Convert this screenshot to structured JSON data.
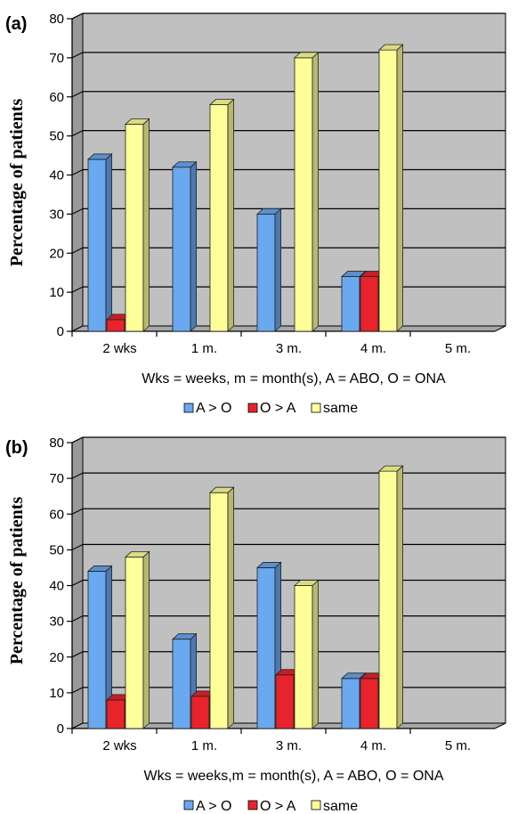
{
  "colors": {
    "A_gt_O": "#6aa8f0",
    "O_gt_A": "#e8232b",
    "same": "#ffff99",
    "plot_bg": "#c0c0c0",
    "wall_side": "#999999"
  },
  "chart_data": [
    {
      "type": "bar",
      "panel_label": "(a)",
      "categories": [
        "2 wks",
        "1 m.",
        "3 m.",
        "4 m.",
        "5 m."
      ],
      "series": [
        {
          "name": "A > O",
          "values": [
            44,
            42,
            30,
            14,
            0
          ]
        },
        {
          "name": "O > A",
          "values": [
            3,
            0,
            0,
            14,
            0
          ]
        },
        {
          "name": "same",
          "values": [
            53,
            58,
            70,
            72,
            0
          ]
        }
      ],
      "ylabel": "Percentage of patients",
      "xlabel": "Wks = weeks, m = month(s), A = ABO, O = ONA",
      "ylim": [
        0,
        80
      ],
      "yticks": [
        "0",
        "10",
        "20",
        "30",
        "40",
        "50",
        "60",
        "70",
        "80"
      ],
      "grid": true,
      "legend_position": "bottom"
    },
    {
      "type": "bar",
      "panel_label": "(b)",
      "categories": [
        "2 wks",
        "1 m.",
        "3 m.",
        "4 m.",
        "5 m."
      ],
      "series": [
        {
          "name": "A > O",
          "values": [
            44,
            25,
            45,
            14,
            0
          ]
        },
        {
          "name": "O > A",
          "values": [
            8,
            9,
            15,
            14,
            0
          ]
        },
        {
          "name": "same",
          "values": [
            48,
            66,
            40,
            72,
            0
          ]
        }
      ],
      "ylabel": "Percentage of patients",
      "xlabel": "Wks = weeks,m = month(s), A = ABO,  O = ONA",
      "ylim": [
        0,
        80
      ],
      "yticks": [
        "0",
        "10",
        "20",
        "30",
        "40",
        "50",
        "60",
        "70",
        "80"
      ],
      "grid": true,
      "legend_position": "bottom"
    }
  ]
}
